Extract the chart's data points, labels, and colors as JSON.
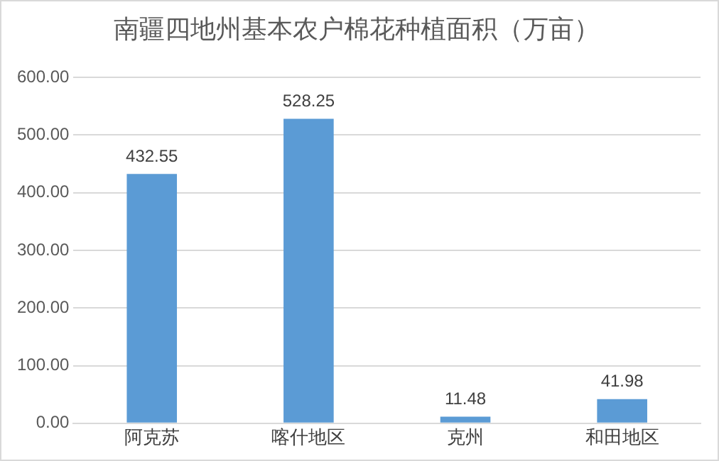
{
  "chart_data": {
    "type": "bar",
    "title": "南疆四地州基本农户棉花种植面积（万亩）",
    "categories": [
      "阿克苏",
      "喀什地区",
      "克州",
      "和田地区"
    ],
    "values": [
      432.55,
      528.25,
      11.48,
      41.98
    ],
    "color": "#5b9bd5",
    "ylim": [
      0,
      600
    ],
    "yticks": [
      {
        "value": 0,
        "label": "0.00"
      },
      {
        "value": 100,
        "label": "100.00"
      },
      {
        "value": 200,
        "label": "200.00"
      },
      {
        "value": 300,
        "label": "300.00"
      },
      {
        "value": 400,
        "label": "400.00"
      },
      {
        "value": 500,
        "label": "500.00"
      },
      {
        "value": 600,
        "label": "600.00"
      }
    ],
    "grid": "y",
    "data_labels": true
  }
}
